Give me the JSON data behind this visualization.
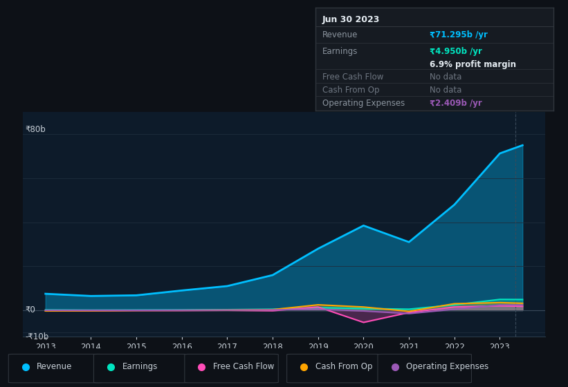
{
  "bg_color": "#0d1117",
  "plot_bg_color": "#0d1b2a",
  "grid_color": "#1e2d3d",
  "text_color": "#c9d1d9",
  "title_color": "#e6edf3",
  "years": [
    2013,
    2014,
    2015,
    2016,
    2017,
    2018,
    2019,
    2020,
    2021,
    2022,
    2023,
    2023.5
  ],
  "revenue": [
    7.5,
    6.5,
    6.8,
    9.0,
    11.0,
    16.0,
    28.0,
    38.5,
    31.0,
    48.0,
    71.295,
    75.0
  ],
  "earnings": [
    0.2,
    0.1,
    0.15,
    0.2,
    0.3,
    0.5,
    1.2,
    0.8,
    0.5,
    2.5,
    4.95,
    4.9
  ],
  "free_cash_flow": [
    -0.3,
    -0.2,
    -0.1,
    -0.1,
    0.0,
    -0.2,
    1.5,
    -5.5,
    -1.0,
    1.5,
    2.0,
    1.8
  ],
  "cash_from_op": [
    -0.3,
    -0.2,
    -0.05,
    0.0,
    0.1,
    0.3,
    2.5,
    1.5,
    -0.5,
    3.0,
    3.5,
    3.2
  ],
  "operating_expenses": [
    0.0,
    0.0,
    0.0,
    0.05,
    0.1,
    0.2,
    0.5,
    -0.3,
    -1.5,
    0.5,
    2.409,
    2.4
  ],
  "revenue_color": "#00bfff",
  "earnings_color": "#00e5c0",
  "fcf_color": "#ff4db8",
  "cfop_color": "#ffa500",
  "opex_color": "#9b59b6",
  "fill_alpha": 0.35,
  "ylim": [
    -12,
    90
  ],
  "xlabel_years": [
    "2013",
    "2014",
    "2015",
    "2016",
    "2017",
    "2018",
    "2019",
    "2020",
    "2021",
    "2022",
    "2023"
  ],
  "tooltip_box": {
    "title": "Jun 30 2023",
    "bg_color": "#161b22",
    "border_color": "#30363d",
    "text_color": "#8b949e",
    "title_color": "#e6edf3"
  },
  "legend_items": [
    {
      "label": "Revenue",
      "color": "#00bfff"
    },
    {
      "label": "Earnings",
      "color": "#00e5c0"
    },
    {
      "label": "Free Cash Flow",
      "color": "#ff4db8"
    },
    {
      "label": "Cash From Op",
      "color": "#ffa500"
    },
    {
      "label": "Operating Expenses",
      "color": "#9b59b6"
    }
  ]
}
